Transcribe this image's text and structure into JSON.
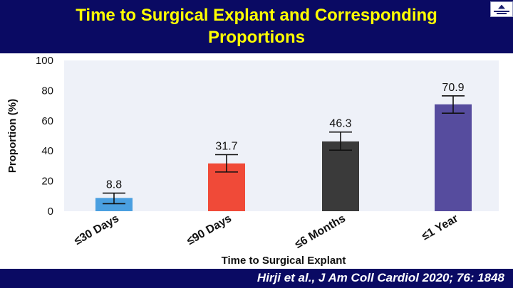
{
  "header": {
    "title_line1": "Time to Surgical Explant and Corresponding",
    "title_line2": "Proportions"
  },
  "logo": {
    "icon": "institution-logo-icon"
  },
  "footer": {
    "citation": "Hirji et al., J Am Coll Cardiol 2020; 76: 1848"
  },
  "colors": {
    "header_bg": "#0a0a63",
    "title": "#ffff00",
    "plot_bg": "#eef1f8"
  },
  "chart_data": {
    "type": "bar",
    "title": "",
    "xlabel": "Time to Surgical Explant",
    "ylabel": "Proportion (%)",
    "ylim": [
      0,
      100
    ],
    "yticks": [
      "0",
      "20",
      "40",
      "60",
      "80",
      "100"
    ],
    "categories": [
      "≤30 Days",
      "≤90 Days",
      "≤6 Months",
      "≤1 Year"
    ],
    "values": [
      8.8,
      31.7,
      46.3,
      70.9
    ],
    "value_labels": [
      "8.8",
      "31.7",
      "46.3",
      "70.9"
    ],
    "error_low": [
      5,
      26,
      40.5,
      65
    ],
    "error_high": [
      12,
      37.5,
      52.5,
      76.5
    ],
    "colors": [
      "#4a9fe0",
      "#f04a38",
      "#3a3a3a",
      "#564c9e"
    ],
    "grid": false
  }
}
